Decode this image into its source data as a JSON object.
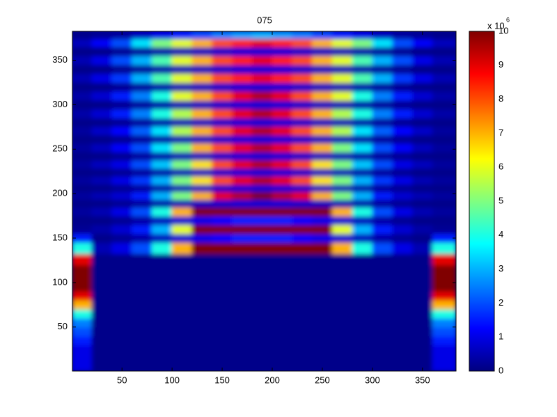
{
  "chart_data": {
    "type": "heatmap",
    "title": "075",
    "colormap": "jet",
    "xlim": [
      0.5,
      383.5
    ],
    "ylim": [
      0.5,
      382.5
    ],
    "xticks": [
      50,
      100,
      150,
      200,
      250,
      300,
      350
    ],
    "yticks": [
      50,
      100,
      150,
      200,
      250,
      300,
      350
    ],
    "clim": [
      0,
      10
    ],
    "cticks": [
      0,
      1,
      2,
      3,
      4,
      5,
      6,
      7,
      8,
      9,
      10
    ],
    "colorbar_label": "x 10",
    "colorbar_exponent": "6",
    "x": [
      10,
      30,
      50,
      70,
      90,
      110,
      130,
      150,
      170,
      190,
      210,
      230,
      250,
      270,
      290,
      310,
      330,
      350,
      370
    ],
    "y": [
      5,
      15,
      25,
      35,
      45,
      55,
      65,
      75,
      85,
      95,
      105,
      115,
      125,
      140,
      150,
      160,
      170,
      180,
      189,
      198,
      206,
      215,
      224,
      233,
      242,
      252,
      261,
      271,
      280,
      290,
      300,
      310,
      320,
      330,
      340,
      350,
      360,
      370,
      378
    ],
    "z": [
      [
        1,
        0.1,
        0.1,
        0.1,
        0.1,
        0.1,
        0.1,
        0.1,
        0.1,
        0.1,
        0.1,
        0.1,
        0.1,
        0.1,
        0.1,
        0.1,
        0.1,
        0.1,
        1
      ],
      [
        1,
        0.1,
        0.1,
        0.1,
        0.1,
        0.1,
        0.1,
        0.1,
        0.1,
        0.1,
        0.1,
        0.1,
        0.1,
        0.1,
        0.1,
        0.1,
        0.1,
        0.1,
        1
      ],
      [
        1,
        0.1,
        0.1,
        0.1,
        0.1,
        0.1,
        0.1,
        0.1,
        0.1,
        0.1,
        0.1,
        0.1,
        0.1,
        0.1,
        0.1,
        0.1,
        0.1,
        0.1,
        1
      ],
      [
        1.5,
        0.1,
        0.1,
        0.1,
        0.1,
        0.1,
        0.1,
        0.1,
        0.1,
        0.1,
        0.1,
        0.1,
        0.1,
        0.1,
        0.1,
        0.1,
        0.1,
        0.1,
        1.5
      ],
      [
        2,
        0.1,
        0.1,
        0.1,
        0.1,
        0.1,
        0.1,
        0.1,
        0.1,
        0.1,
        0.1,
        0.1,
        0.1,
        0.1,
        0.1,
        0.1,
        0.1,
        0.1,
        2
      ],
      [
        2.5,
        0.1,
        0.1,
        0.1,
        0.1,
        0.1,
        0.1,
        0.1,
        0.1,
        0.1,
        0.1,
        0.1,
        0.1,
        0.1,
        0.1,
        0.1,
        0.1,
        0.1,
        2.5
      ],
      [
        4,
        0.1,
        0.1,
        0.1,
        0.1,
        0.1,
        0.1,
        0.1,
        0.1,
        0.1,
        0.1,
        0.1,
        0.1,
        0.1,
        0.1,
        0.1,
        0.1,
        0.1,
        4
      ],
      [
        7,
        0.1,
        0.1,
        0.1,
        0.1,
        0.1,
        0.1,
        0.1,
        0.1,
        0.1,
        0.1,
        0.1,
        0.1,
        0.1,
        0.1,
        0.1,
        0.1,
        0.1,
        7
      ],
      [
        9,
        0.1,
        0.1,
        0.1,
        0.1,
        0.1,
        0.1,
        0.1,
        0.1,
        0.1,
        0.1,
        0.1,
        0.1,
        0.1,
        0.1,
        0.1,
        0.1,
        0.1,
        9
      ],
      [
        10,
        0.1,
        0.1,
        0.1,
        0.1,
        0.1,
        0.1,
        0.1,
        0.1,
        0.1,
        0.1,
        0.1,
        0.1,
        0.1,
        0.1,
        0.1,
        0.1,
        0.1,
        10
      ],
      [
        10,
        0.1,
        0.1,
        0.1,
        0.1,
        0.1,
        0.1,
        0.1,
        0.1,
        0.1,
        0.1,
        0.1,
        0.1,
        0.1,
        0.1,
        0.1,
        0.1,
        0.1,
        10
      ],
      [
        10,
        0.1,
        0.1,
        0.1,
        0.1,
        0.1,
        0.1,
        0.1,
        0.1,
        0.1,
        0.1,
        0.1,
        0.1,
        0.1,
        0.1,
        0.1,
        0.1,
        0.1,
        10
      ],
      [
        9,
        0.1,
        0.1,
        0.1,
        0.1,
        0.1,
        0.1,
        0.1,
        0.1,
        0.1,
        0.1,
        0.1,
        0.1,
        0.1,
        0.1,
        0.1,
        0.1,
        0.1,
        9
      ],
      [
        4,
        0.5,
        1,
        2,
        4,
        7,
        10,
        10,
        10,
        10,
        10,
        10,
        10,
        7,
        4,
        2,
        1,
        0.5,
        4
      ],
      [
        1.5,
        0.1,
        0.2,
        0.4,
        0.6,
        0.8,
        1,
        1.2,
        1.5,
        1.5,
        1.5,
        1.2,
        1,
        0.8,
        0.6,
        0.4,
        0.2,
        0.1,
        1.5
      ],
      [
        0.2,
        0.4,
        0.8,
        1.5,
        3,
        6,
        10,
        10,
        10,
        10,
        10,
        10,
        10,
        6,
        3,
        1.5,
        0.8,
        0.4,
        0.2
      ],
      [
        0.1,
        0.1,
        0.2,
        0.4,
        0.6,
        0.8,
        1,
        1.2,
        1.5,
        1.5,
        1.5,
        1.2,
        1,
        0.8,
        0.6,
        0.4,
        0.2,
        0.1,
        0.1
      ],
      [
        0.3,
        0.5,
        1,
        2,
        4,
        7,
        10,
        10,
        10,
        10,
        10,
        10,
        10,
        7,
        4,
        2,
        1,
        0.5,
        0.3
      ],
      [
        0.1,
        0.1,
        0.2,
        0.3,
        0.4,
        0.5,
        0.6,
        0.7,
        0.8,
        0.8,
        0.8,
        0.7,
        0.6,
        0.5,
        0.4,
        0.3,
        0.2,
        0.1,
        0.1
      ],
      [
        0.3,
        0.5,
        0.8,
        1.5,
        3,
        5,
        7,
        9,
        9.5,
        10,
        9.5,
        9,
        7,
        5,
        3,
        1.5,
        0.8,
        0.5,
        0.3
      ],
      [
        0.1,
        0.1,
        0.2,
        0.3,
        0.4,
        0.5,
        0.6,
        0.7,
        0.8,
        0.8,
        0.8,
        0.7,
        0.6,
        0.5,
        0.4,
        0.3,
        0.2,
        0.1,
        0.1
      ],
      [
        0.3,
        0.5,
        1,
        1.8,
        3,
        5,
        6.5,
        8,
        9,
        9.5,
        9,
        8,
        6.5,
        5,
        3,
        1.8,
        1,
        0.5,
        0.3
      ],
      [
        0.1,
        0.1,
        0.2,
        0.3,
        0.4,
        0.5,
        0.6,
        0.7,
        0.8,
        0.8,
        0.8,
        0.7,
        0.6,
        0.5,
        0.4,
        0.3,
        0.2,
        0.1,
        0.1
      ],
      [
        0.3,
        0.6,
        1,
        2,
        3.2,
        5,
        6.5,
        8,
        9,
        9.5,
        9,
        8,
        6.5,
        5,
        3.2,
        2,
        1,
        0.6,
        0.3
      ],
      [
        0.1,
        0.1,
        0.2,
        0.3,
        0.4,
        0.5,
        0.6,
        0.7,
        0.8,
        0.8,
        0.8,
        0.7,
        0.6,
        0.5,
        0.4,
        0.3,
        0.2,
        0.1,
        0.1
      ],
      [
        0.3,
        0.6,
        1.2,
        2,
        3.5,
        5,
        7,
        8,
        9,
        9.5,
        9,
        8,
        7,
        5,
        3.5,
        2,
        1.2,
        0.6,
        0.3
      ],
      [
        0.1,
        0.1,
        0.2,
        0.3,
        0.4,
        0.5,
        0.6,
        0.7,
        0.8,
        0.8,
        0.8,
        0.7,
        0.6,
        0.5,
        0.4,
        0.3,
        0.2,
        0.1,
        0.1
      ],
      [
        0.3,
        0.7,
        1.3,
        2.2,
        3.5,
        5.5,
        7,
        8,
        9,
        9.5,
        9,
        8,
        7,
        5.5,
        3.5,
        2.2,
        1.3,
        0.7,
        0.3
      ],
      [
        0.1,
        0.1,
        0.2,
        0.3,
        0.4,
        0.5,
        0.6,
        0.7,
        0.8,
        0.8,
        0.8,
        0.7,
        0.6,
        0.5,
        0.4,
        0.3,
        0.2,
        0.1,
        0.1
      ],
      [
        0.4,
        0.8,
        1.5,
        2.5,
        4,
        5.5,
        7,
        8,
        9,
        9.5,
        9,
        8,
        7,
        5.5,
        4,
        2.5,
        1.5,
        0.8,
        0.4
      ],
      [
        0.1,
        0.1,
        0.2,
        0.3,
        0.4,
        0.5,
        0.6,
        0.7,
        0.8,
        0.8,
        0.8,
        0.7,
        0.6,
        0.5,
        0.4,
        0.3,
        0.2,
        0.1,
        0.1
      ],
      [
        0.4,
        0.8,
        1.5,
        2.5,
        4,
        6,
        7,
        8,
        9,
        9.5,
        9,
        8,
        7,
        6,
        4,
        2.5,
        1.5,
        0.8,
        0.4
      ],
      [
        0.1,
        0.1,
        0.2,
        0.3,
        0.4,
        0.5,
        0.6,
        0.7,
        0.8,
        0.8,
        0.8,
        0.7,
        0.6,
        0.5,
        0.4,
        0.3,
        0.2,
        0.1,
        0.1
      ],
      [
        0.5,
        1,
        1.8,
        3,
        4.5,
        6,
        7,
        8,
        8.5,
        9,
        8.5,
        8,
        7,
        6,
        4.5,
        3,
        1.8,
        1,
        0.5
      ],
      [
        0.1,
        0.1,
        0.2,
        0.3,
        0.4,
        0.5,
        0.6,
        0.7,
        0.8,
        0.8,
        0.8,
        0.7,
        0.6,
        0.5,
        0.4,
        0.3,
        0.2,
        0.1,
        0.1
      ],
      [
        0.5,
        1,
        2,
        3,
        4.5,
        6,
        7,
        8,
        8.5,
        9,
        8.5,
        8,
        7,
        6,
        4.5,
        3,
        2,
        1,
        0.5
      ],
      [
        0.1,
        0.1,
        0.2,
        0.3,
        0.4,
        0.5,
        0.6,
        0.7,
        0.8,
        0.8,
        0.8,
        0.7,
        0.6,
        0.5,
        0.4,
        0.3,
        0.2,
        0.1,
        0.1
      ],
      [
        0.6,
        1.2,
        2,
        3.5,
        5,
        6,
        7,
        8,
        8.5,
        9,
        8.5,
        8,
        7,
        6,
        5,
        3.5,
        2,
        1.2,
        0.6
      ],
      [
        0.1,
        0.2,
        0.3,
        0.6,
        1,
        1.5,
        2,
        2.5,
        2.8,
        3,
        2.8,
        2.5,
        2,
        1.5,
        1,
        0.6,
        0.3,
        0.2,
        0.1
      ]
    ]
  }
}
